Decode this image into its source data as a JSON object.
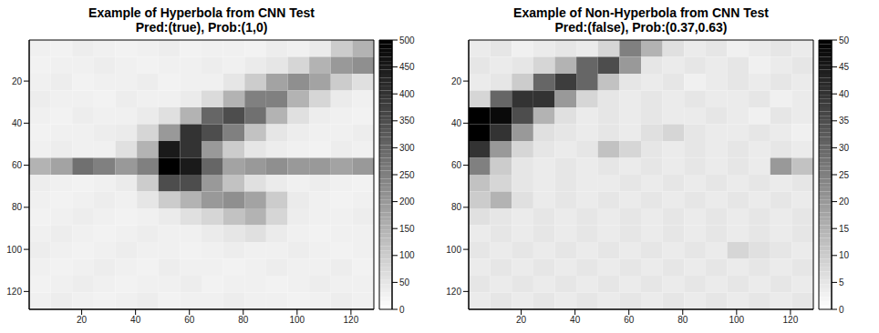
{
  "chart_data": [
    {
      "type": "heatmap",
      "title": "Example of Hyperbola from CNN Test",
      "subtitle": "Pred:(true), Prob:(1,0)",
      "xlim": [
        0.5,
        128.5
      ],
      "ylim": [
        128.5,
        0.5
      ],
      "xticks": [
        20,
        40,
        60,
        80,
        100,
        120
      ],
      "yticks": [
        20,
        40,
        60,
        80,
        100,
        120
      ],
      "cells": {
        "x_edges": [
          0.5,
          8.5,
          16.5,
          24.5,
          32.5,
          40.5,
          48.5,
          56.5,
          64.5,
          72.5,
          80.5,
          88.5,
          96.5,
          104.5,
          112.5,
          120.5,
          128.5
        ],
        "y_edges": [
          0.5,
          8.5,
          16.5,
          24.5,
          32.5,
          40.5,
          48.5,
          56.5,
          64.5,
          72.5,
          80.5,
          88.5,
          96.5,
          104.5,
          112.5,
          120.5,
          128.5
        ],
        "z": [
          [
            30,
            25,
            35,
            30,
            25,
            30,
            35,
            25,
            30,
            30,
            25,
            35,
            30,
            40,
            100,
            150
          ],
          [
            25,
            30,
            30,
            35,
            30,
            25,
            30,
            30,
            35,
            30,
            40,
            50,
            80,
            150,
            200,
            220
          ],
          [
            30,
            35,
            25,
            30,
            30,
            35,
            25,
            30,
            30,
            50,
            100,
            180,
            220,
            180,
            100,
            60
          ],
          [
            35,
            30,
            30,
            25,
            35,
            30,
            30,
            40,
            70,
            150,
            250,
            250,
            150,
            80,
            40,
            30
          ],
          [
            30,
            25,
            35,
            30,
            30,
            40,
            60,
            150,
            300,
            350,
            280,
            150,
            60,
            35,
            30,
            25
          ],
          [
            25,
            30,
            30,
            35,
            40,
            80,
            200,
            400,
            350,
            250,
            120,
            50,
            35,
            30,
            30,
            35
          ],
          [
            30,
            35,
            30,
            30,
            60,
            150,
            450,
            400,
            200,
            100,
            50,
            35,
            30,
            25,
            35,
            30
          ],
          [
            150,
            180,
            280,
            250,
            200,
            250,
            500,
            450,
            300,
            180,
            200,
            220,
            200,
            200,
            180,
            200
          ],
          [
            35,
            30,
            25,
            30,
            40,
            100,
            350,
            350,
            200,
            120,
            60,
            40,
            30,
            35,
            30,
            25
          ],
          [
            30,
            25,
            30,
            35,
            30,
            50,
            100,
            150,
            200,
            220,
            180,
            100,
            40,
            30,
            25,
            30
          ],
          [
            25,
            30,
            35,
            30,
            25,
            30,
            40,
            60,
            80,
            120,
            150,
            80,
            35,
            30,
            30,
            35
          ],
          [
            30,
            35,
            30,
            25,
            30,
            35,
            30,
            30,
            40,
            50,
            60,
            40,
            30,
            25,
            30,
            30
          ],
          [
            35,
            30,
            25,
            30,
            35,
            30,
            30,
            25,
            30,
            35,
            30,
            30,
            35,
            30,
            25,
            30
          ],
          [
            30,
            25,
            30,
            35,
            30,
            25,
            35,
            30,
            30,
            25,
            30,
            35,
            30,
            30,
            35,
            25
          ],
          [
            25,
            30,
            35,
            30,
            25,
            30,
            30,
            35,
            25,
            30,
            30,
            25,
            30,
            35,
            30,
            30
          ],
          [
            30,
            35,
            30,
            25,
            30,
            35,
            25,
            30,
            30,
            35,
            30,
            30,
            25,
            30,
            35,
            30
          ]
        ]
      },
      "colorbar": {
        "lim": [
          0,
          500
        ],
        "ticks": [
          0,
          50,
          100,
          150,
          200,
          250,
          300,
          350,
          400,
          450,
          500
        ],
        "colors": [
          "#ffffff",
          "#000000"
        ]
      }
    },
    {
      "type": "heatmap",
      "title": "Example of Non-Hyperbola from CNN Test",
      "subtitle": "Pred:(false), Prob:(0.37,0.63)",
      "xlim": [
        0.5,
        128.5
      ],
      "ylim": [
        128.5,
        0.5
      ],
      "xticks": [
        20,
        40,
        60,
        80,
        100,
        120
      ],
      "yticks": [
        20,
        40,
        60,
        80,
        100,
        120
      ],
      "cells": {
        "x_edges": [
          0.5,
          8.5,
          16.5,
          24.5,
          32.5,
          40.5,
          48.5,
          56.5,
          64.5,
          72.5,
          80.5,
          88.5,
          96.5,
          104.5,
          112.5,
          120.5,
          128.5
        ],
        "y_edges": [
          0.5,
          8.5,
          16.5,
          24.5,
          32.5,
          40.5,
          48.5,
          56.5,
          64.5,
          72.5,
          80.5,
          88.5,
          96.5,
          104.5,
          112.5,
          120.5,
          128.5
        ],
        "z": [
          [
            4,
            5,
            3,
            4,
            5,
            4,
            8,
            25,
            15,
            6,
            4,
            5,
            3,
            4,
            5,
            4
          ],
          [
            5,
            4,
            5,
            8,
            15,
            30,
            35,
            20,
            5,
            4,
            5,
            4,
            5,
            3,
            4,
            5
          ],
          [
            4,
            5,
            10,
            30,
            38,
            30,
            12,
            5,
            4,
            5,
            3,
            4,
            5,
            4,
            5,
            4
          ],
          [
            8,
            30,
            40,
            40,
            20,
            8,
            5,
            4,
            5,
            4,
            5,
            4,
            4,
            5,
            3,
            4
          ],
          [
            50,
            48,
            35,
            15,
            6,
            4,
            5,
            4,
            5,
            4,
            4,
            5,
            4,
            3,
            5,
            4
          ],
          [
            50,
            40,
            20,
            6,
            5,
            4,
            5,
            4,
            6,
            8,
            5,
            4,
            4,
            5,
            4,
            3
          ],
          [
            40,
            20,
            8,
            5,
            4,
            5,
            12,
            8,
            5,
            4,
            5,
            4,
            5,
            4,
            5,
            4
          ],
          [
            25,
            10,
            5,
            4,
            5,
            4,
            5,
            4,
            5,
            4,
            5,
            4,
            5,
            4,
            20,
            12
          ],
          [
            12,
            8,
            5,
            4,
            5,
            4,
            4,
            5,
            4,
            5,
            4,
            5,
            4,
            5,
            4,
            5
          ],
          [
            10,
            15,
            6,
            4,
            5,
            4,
            5,
            4,
            5,
            4,
            5,
            4,
            5,
            4,
            5,
            4
          ],
          [
            6,
            5,
            4,
            5,
            4,
            5,
            4,
            5,
            4,
            5,
            4,
            5,
            4,
            5,
            4,
            5
          ],
          [
            4,
            5,
            4,
            5,
            4,
            5,
            4,
            5,
            4,
            5,
            4,
            5,
            4,
            5,
            4,
            5
          ],
          [
            5,
            4,
            5,
            4,
            5,
            4,
            5,
            4,
            5,
            4,
            5,
            4,
            8,
            6,
            5,
            4
          ],
          [
            4,
            5,
            4,
            5,
            4,
            5,
            4,
            5,
            4,
            5,
            4,
            5,
            4,
            5,
            4,
            5
          ],
          [
            5,
            4,
            5,
            4,
            5,
            4,
            5,
            4,
            5,
            4,
            5,
            4,
            5,
            4,
            5,
            4
          ],
          [
            4,
            5,
            4,
            5,
            4,
            5,
            4,
            5,
            4,
            5,
            4,
            5,
            4,
            5,
            4,
            5
          ]
        ]
      },
      "colorbar": {
        "lim": [
          0,
          50
        ],
        "ticks": [
          0,
          5,
          10,
          15,
          20,
          25,
          30,
          35,
          40,
          45,
          50
        ],
        "colors": [
          "#ffffff",
          "#000000"
        ]
      }
    }
  ]
}
